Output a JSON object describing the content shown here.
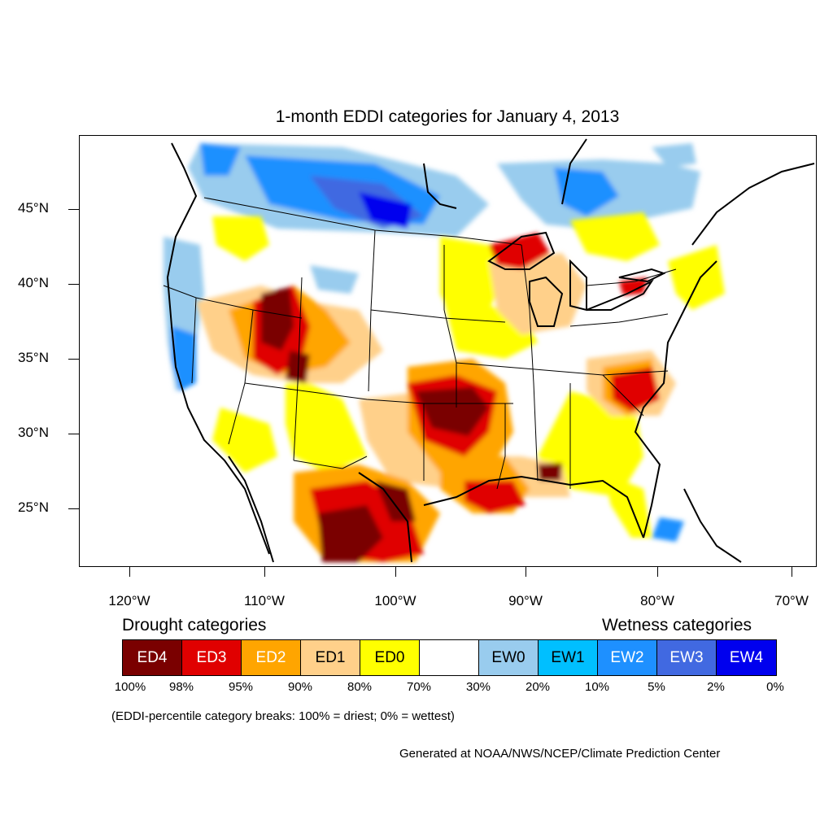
{
  "title": "1-month EDDI categories for January 4, 2013",
  "lat_labels": [
    "45°N",
    "40°N",
    "35°N",
    "30°N",
    "25°N"
  ],
  "lon_labels": [
    "120°W",
    "110°W",
    "100°W",
    "90°W",
    "80°W",
    "70°W"
  ],
  "legend": {
    "drought_heading": "Drought categories",
    "wetness_heading": "Wetness categories",
    "categories": [
      {
        "label": "ED4",
        "color": "#7a0000",
        "text_color": "#ffffff"
      },
      {
        "label": "ED3",
        "color": "#e00000",
        "text_color": "#ffffff"
      },
      {
        "label": "ED2",
        "color": "#ffa500",
        "text_color": "#ffffff"
      },
      {
        "label": "ED1",
        "color": "#ffd08a",
        "text_color": "#000000"
      },
      {
        "label": "ED0",
        "color": "#ffff00",
        "text_color": "#000000"
      },
      {
        "label": "",
        "color": "#ffffff",
        "text_color": "#000000"
      },
      {
        "label": "EW0",
        "color": "#99ccee",
        "text_color": "#000000"
      },
      {
        "label": "EW1",
        "color": "#00bfff",
        "text_color": "#000000"
      },
      {
        "label": "EW2",
        "color": "#1e90ff",
        "text_color": "#ffffff"
      },
      {
        "label": "EW3",
        "color": "#4169e1",
        "text_color": "#ffffff"
      },
      {
        "label": "EW4",
        "color": "#0000ee",
        "text_color": "#ffffff"
      }
    ],
    "percent_breaks": [
      "100%",
      "98%",
      "95%",
      "90%",
      "80%",
      "70%",
      "30%",
      "20%",
      "10%",
      "5%",
      "2%",
      "0%"
    ]
  },
  "note": "(EDDI-percentile category breaks: 100% = driest; 0% = wettest)",
  "credit": "Generated at NOAA/NWS/NCEP/Climate Prediction Center"
}
